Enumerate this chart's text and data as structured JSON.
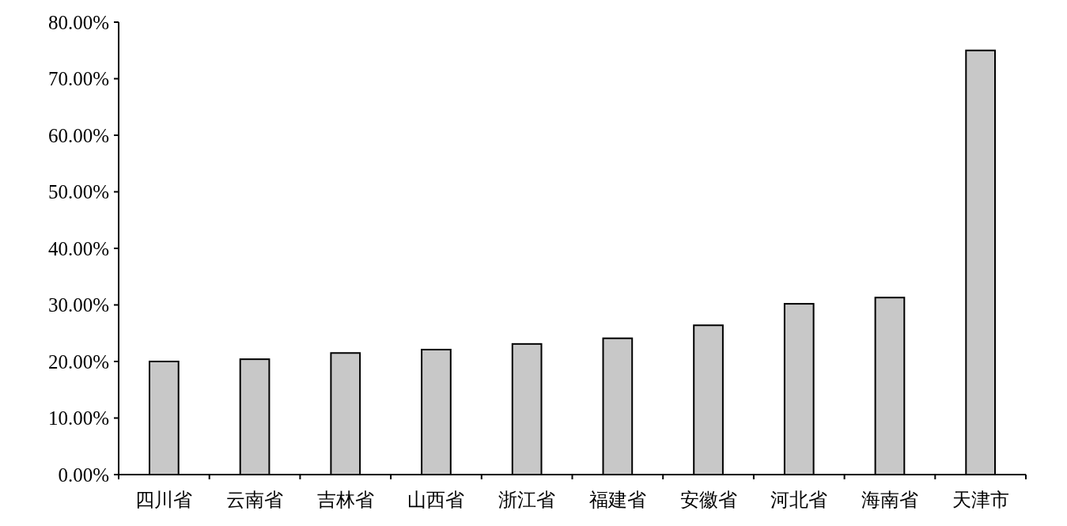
{
  "chart_data": {
    "type": "bar",
    "categories": [
      "四川省",
      "云南省",
      "吉林省",
      "山西省",
      "浙江省",
      "福建省",
      "安徽省",
      "河北省",
      "海南省",
      "天津市"
    ],
    "values": [
      20.0,
      20.4,
      21.5,
      22.1,
      23.1,
      24.1,
      26.4,
      30.2,
      31.3,
      75.0
    ],
    "color": "#c8c8c8",
    "ylim": [
      0,
      80
    ],
    "yticks": [
      {
        "value": 0,
        "label": "0.00%"
      },
      {
        "value": 10,
        "label": "10.00%"
      },
      {
        "value": 20,
        "label": "20.00%"
      },
      {
        "value": 30,
        "label": "30.00%"
      },
      {
        "value": 40,
        "label": "40.00%"
      },
      {
        "value": 50,
        "label": "50.00%"
      },
      {
        "value": 60,
        "label": "60.00%"
      },
      {
        "value": 70,
        "label": "70.00%"
      },
      {
        "value": 80,
        "label": "80.00%"
      }
    ],
    "grid": false
  }
}
